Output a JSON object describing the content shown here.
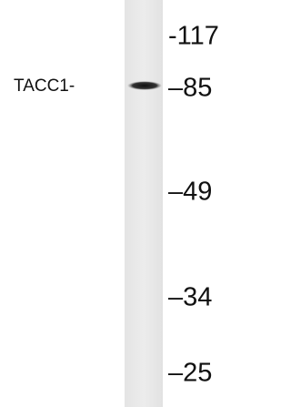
{
  "blot": {
    "band_label": "TACC1-",
    "markers": [
      "-117",
      "–85",
      "–49",
      "–34",
      "–25"
    ]
  }
}
